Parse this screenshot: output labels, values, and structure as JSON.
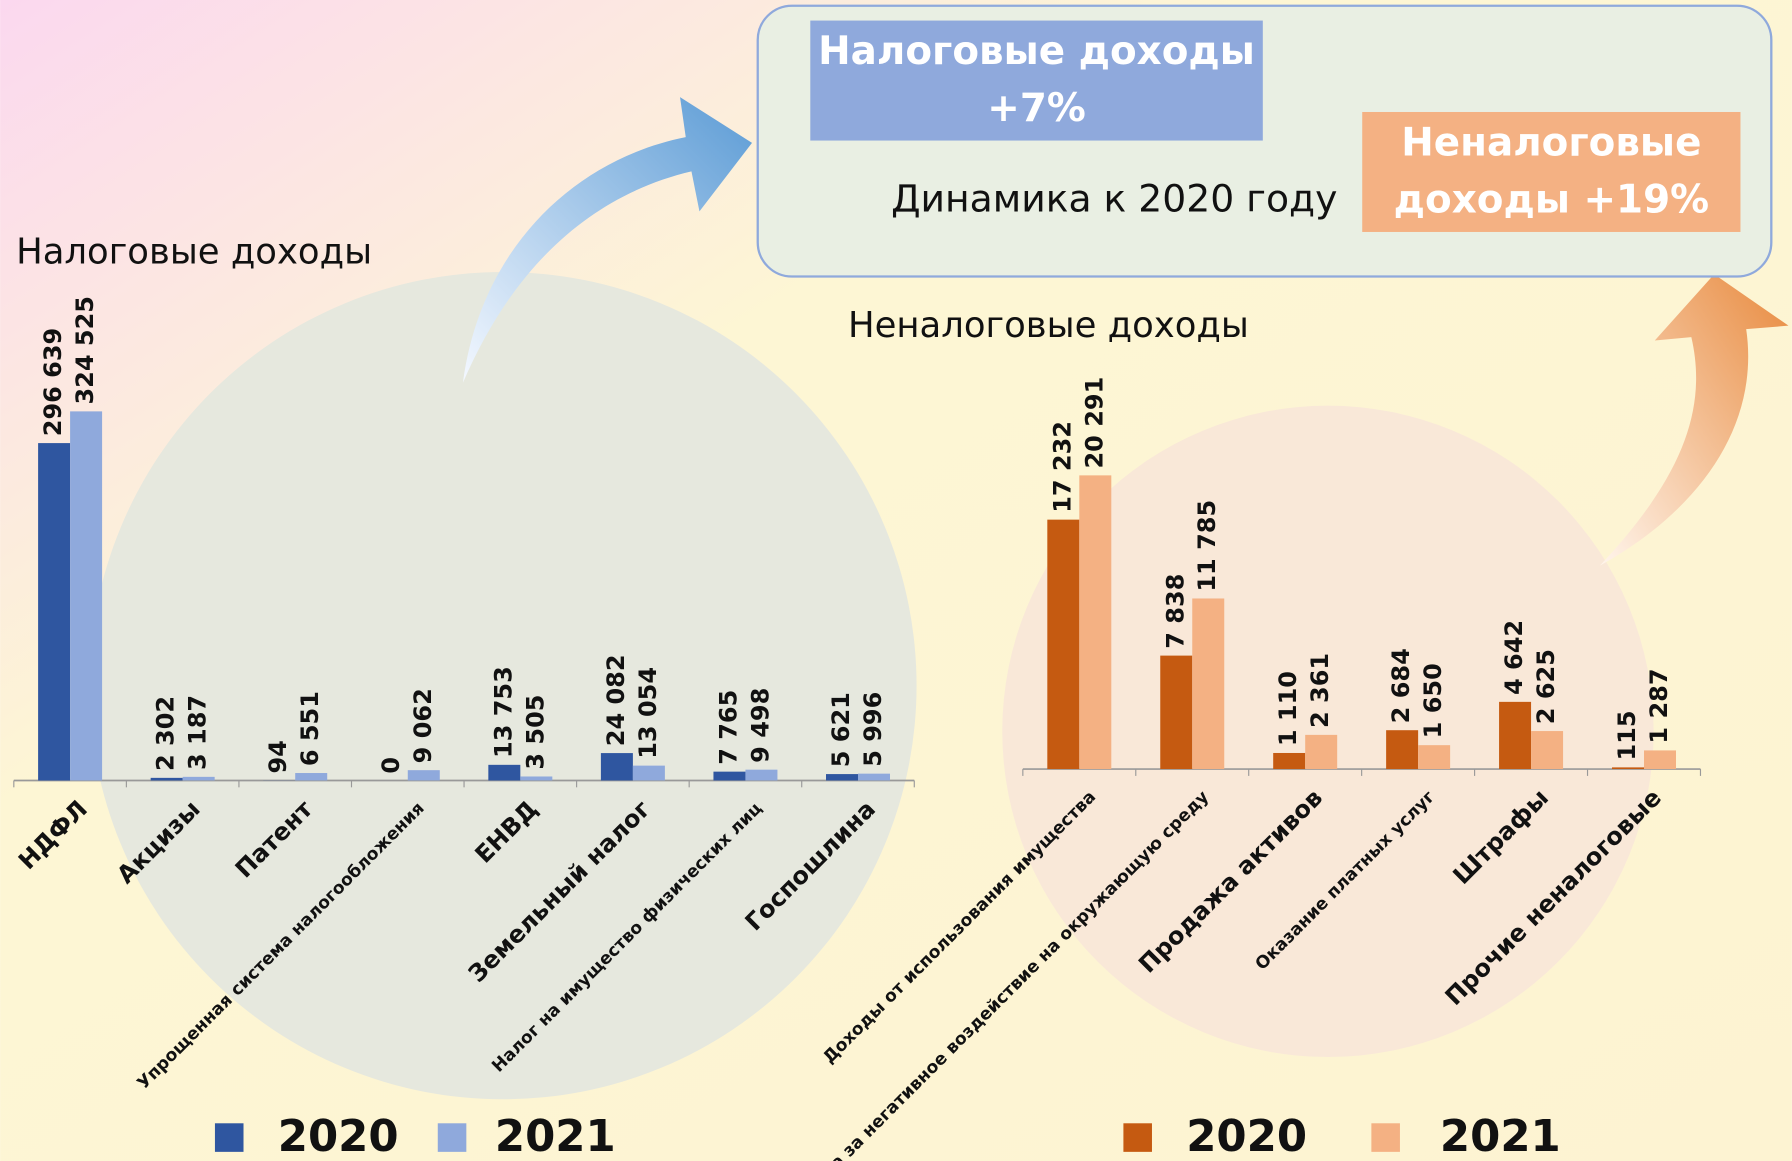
{
  "summary": {
    "tax": "Налоговые доходы +7%",
    "nontax": "Неналоговые доходы +19%",
    "caption": "Динамика к 2020 году"
  },
  "chart_data": [
    {
      "type": "bar",
      "title": "Налоговые доходы",
      "categories": [
        "НДФЛ",
        "Акцизы",
        "Патент",
        "Упрощенная система налогообложения",
        "ЕНВД",
        "Земельный налог",
        "Налог на имущество физических лиц",
        "Госпошлина"
      ],
      "series": [
        {
          "name": "2020",
          "color": "#2f56a0",
          "values": [
            296639,
            2302,
            94,
            0,
            13753,
            24082,
            7765,
            5621
          ],
          "value_labels": [
            "296 639",
            "2 302",
            "94",
            "0",
            "13 753",
            "24 082",
            "7 765",
            "5 621"
          ]
        },
        {
          "name": "2021",
          "color": "#8fa9dc",
          "values": [
            324525,
            3187,
            6551,
            9062,
            3505,
            13054,
            9498,
            5996
          ],
          "value_labels": [
            "324 525",
            "3 187",
            "6 551",
            "9 062",
            "3 505",
            "13 054",
            "9 498",
            "5 996"
          ]
        }
      ]
    },
    {
      "type": "bar",
      "title": "Неналоговые доходы",
      "categories": [
        "Доходы от использования имущества",
        "Плата за негативное воздействие на окружающую среду",
        "Продажа активов",
        "Оказание платных услуг",
        "Штрафы",
        "Прочие неналоговые"
      ],
      "series": [
        {
          "name": "2020",
          "color": "#c55a11",
          "values": [
            17232,
            7838,
            1110,
            2684,
            4642,
            115
          ],
          "value_labels": [
            "17 232",
            "7 838",
            "1 110",
            "2 684",
            "4 642",
            "115"
          ]
        },
        {
          "name": "2021",
          "color": "#f4b183",
          "values": [
            20291,
            11785,
            2361,
            1650,
            2625,
            1287
          ],
          "value_labels": [
            "20 291",
            "11 785",
            "2 361",
            "1 650",
            "2 625",
            "1 287"
          ]
        }
      ]
    }
  ]
}
